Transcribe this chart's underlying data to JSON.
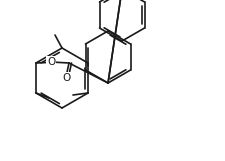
{
  "bg_color": "#ffffff",
  "line_color": "#1a1a1a",
  "line_width": 1.2,
  "figsize": [
    2.25,
    1.61
  ],
  "dpi": 100
}
